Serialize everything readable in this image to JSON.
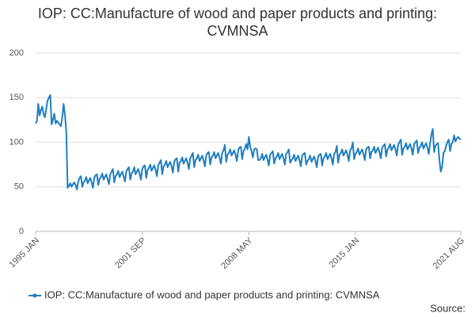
{
  "chart_data": {
    "type": "line",
    "title": "IOP: CC:Manufacture of wood and paper products and printing: CVMNSA",
    "source": "Source:",
    "categories": [
      "1995 JAN",
      null,
      null,
      null,
      null,
      null,
      null,
      null,
      null,
      null,
      null,
      null,
      null,
      null,
      null,
      null,
      null,
      null,
      null,
      null,
      null,
      null,
      null,
      null,
      null,
      null,
      null,
      null,
      null,
      null,
      null,
      null,
      null,
      null,
      null,
      null,
      null,
      null,
      null,
      null,
      null,
      null,
      null,
      null,
      null,
      null,
      null,
      null,
      null,
      null,
      null,
      null,
      null,
      null,
      null,
      null,
      null,
      null,
      null,
      null,
      null,
      null,
      null,
      null,
      null,
      null,
      null,
      null,
      null,
      null,
      null,
      null,
      null,
      null,
      null,
      null,
      null,
      null,
      null,
      null,
      "2001 SEP",
      null,
      null,
      null,
      null,
      null,
      null,
      null,
      null,
      null,
      null,
      null,
      null,
      null,
      null,
      null,
      null,
      null,
      null,
      null,
      null,
      null,
      null,
      null,
      null,
      null,
      null,
      null,
      null,
      null,
      null,
      null,
      null,
      null,
      null,
      null,
      null,
      null,
      null,
      null,
      null,
      null,
      null,
      null,
      null,
      null,
      null,
      null,
      null,
      null,
      null,
      null,
      null,
      null,
      null,
      null,
      null,
      null,
      null,
      null,
      null,
      null,
      null,
      null,
      null,
      null,
      null,
      null,
      null,
      null,
      null,
      null,
      null,
      null,
      null,
      null,
      null,
      null,
      null,
      null,
      "2008 MAY",
      null,
      null,
      null,
      null,
      null,
      null,
      null,
      null,
      null,
      null,
      null,
      null,
      null,
      null,
      null,
      null,
      null,
      null,
      null,
      null,
      null,
      null,
      null,
      null,
      null,
      null,
      null,
      null,
      null,
      null,
      null,
      null,
      null,
      null,
      null,
      null,
      null,
      null,
      null,
      null,
      null,
      null,
      null,
      null,
      null,
      null,
      null,
      null,
      null,
      null,
      null,
      null,
      null,
      null,
      null,
      null,
      null,
      null,
      null,
      null,
      null,
      null,
      null,
      null,
      null,
      null,
      null,
      null,
      null,
      null,
      null,
      null,
      null,
      null,
      null,
      null,
      null,
      null,
      null,
      "2015 JAN",
      null,
      null,
      null,
      null,
      null,
      null,
      null,
      null,
      null,
      null,
      null,
      null,
      null,
      null,
      null,
      null,
      null,
      null,
      null,
      null,
      null,
      null,
      null,
      null,
      null,
      null,
      null,
      null,
      null,
      null,
      null,
      null,
      null,
      null,
      null,
      null,
      null,
      null,
      null,
      null,
      null,
      null,
      null,
      null,
      null,
      null,
      null,
      null,
      null,
      null,
      null,
      null,
      null,
      null,
      null,
      null,
      null,
      null,
      null,
      null,
      null,
      null,
      null,
      null,
      null,
      null,
      null,
      null,
      null,
      null,
      null,
      null,
      null,
      null,
      null,
      null,
      null,
      null,
      "2021 AUG"
    ],
    "series": [
      {
        "name": "IOP: CC:Manufacture of wood and paper products and printing: CVMNSA",
        "color": "#1f7fc0",
        "values": [
          121,
          124,
          143,
          130,
          136,
          140,
          131,
          128,
          138,
          147,
          150,
          153,
          120,
          125,
          132,
          121,
          124,
          122,
          120,
          118,
          128,
          143,
          131,
          112,
          49,
          51,
          54,
          50,
          53,
          55,
          52,
          47,
          56,
          60,
          62,
          50,
          55,
          57,
          61,
          54,
          57,
          60,
          55,
          49,
          60,
          63,
          64,
          52,
          59,
          61,
          65,
          58,
          61,
          64,
          59,
          53,
          64,
          67,
          70,
          55,
          62,
          64,
          68,
          61,
          64,
          67,
          62,
          56,
          67,
          70,
          72,
          58,
          65,
          67,
          72,
          64,
          67,
          70,
          65,
          58,
          70,
          73,
          74,
          60,
          69,
          71,
          75,
          68,
          71,
          74,
          69,
          62,
          74,
          77,
          80,
          64,
          73,
          75,
          79,
          72,
          75,
          78,
          73,
          66,
          78,
          81,
          82,
          67,
          77,
          79,
          83,
          76,
          79,
          82,
          77,
          70,
          82,
          85,
          88,
          72,
          80,
          82,
          86,
          79,
          82,
          85,
          80,
          73,
          85,
          88,
          89,
          75,
          83,
          85,
          89,
          82,
          85,
          88,
          83,
          76,
          88,
          91,
          97,
          78,
          86,
          88,
          92,
          85,
          88,
          91,
          86,
          79,
          91,
          94,
          95,
          81,
          90,
          93,
          98,
          92,
          106,
          95,
          90,
          83,
          92,
          93,
          92,
          80,
          80,
          82,
          87,
          80,
          83,
          86,
          81,
          74,
          86,
          88,
          90,
          76,
          82,
          84,
          88,
          81,
          84,
          87,
          82,
          75,
          87,
          89,
          92,
          77,
          80,
          82,
          86,
          79,
          82,
          85,
          80,
          73,
          85,
          87,
          88,
          75,
          79,
          81,
          85,
          78,
          81,
          84,
          79,
          72,
          84,
          86,
          87,
          74,
          82,
          84,
          88,
          81,
          84,
          87,
          82,
          75,
          87,
          89,
          96,
          77,
          86,
          88,
          92,
          85,
          88,
          91,
          86,
          79,
          91,
          93,
          100,
          81,
          87,
          89,
          93,
          86,
          89,
          92,
          87,
          80,
          92,
          94,
          95,
          82,
          89,
          91,
          95,
          88,
          91,
          94,
          89,
          82,
          94,
          96,
          98,
          84,
          92,
          94,
          98,
          91,
          94,
          97,
          92,
          85,
          97,
          100,
          103,
          86,
          93,
          95,
          99,
          92,
          95,
          98,
          93,
          86,
          98,
          100,
          102,
          88,
          94,
          96,
          100,
          93,
          96,
          99,
          94,
          87,
          99,
          109,
          115,
          89,
          96,
          98,
          99,
          80,
          67,
          72,
          88,
          90,
          96,
          100,
          103,
          90,
          98,
          100,
          108,
          101,
          104,
          106,
          104,
          103
        ]
      }
    ],
    "ylim": [
      0,
      200
    ],
    "yticks": [
      0,
      50,
      100,
      150,
      200
    ],
    "grid": true
  }
}
